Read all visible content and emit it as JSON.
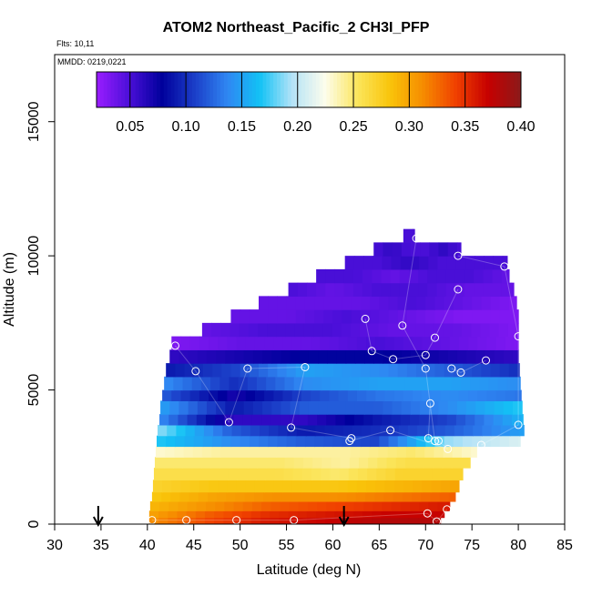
{
  "chart_data": {
    "type": "heatmap",
    "title": "ATOM2 Northeast_Pacific_2 CH3I_PFP",
    "annotations": {
      "flights": "Flts: 10,11",
      "dates": "MMDD: 0219,0221"
    },
    "xlabel": "Latitude (deg N)",
    "ylabel": "Altitude (m)",
    "xlim": [
      30,
      85
    ],
    "ylim": [
      0,
      17500
    ],
    "x_ticks": [
      30,
      35,
      40,
      45,
      50,
      55,
      60,
      65,
      70,
      75,
      80,
      85
    ],
    "y_ticks": [
      0,
      5000,
      10000,
      15000
    ],
    "colorbar": {
      "min": 0.02,
      "max": 0.4,
      "ticks": [
        "0.05",
        "0.10",
        "0.15",
        "0.20",
        "0.25",
        "0.30",
        "0.35",
        "0.40"
      ],
      "tick_values": [
        0.05,
        0.1,
        0.15,
        0.2,
        0.25,
        0.3,
        0.35,
        0.4
      ],
      "palette": [
        "#9a1dff",
        "#4b0fd9",
        "#00009c",
        "#1b3ec8",
        "#2f86f2",
        "#12c2f5",
        "#b5e3f7",
        "#fdfdec",
        "#fbe55b",
        "#f9c40a",
        "#f68c00",
        "#f04100",
        "#c60000",
        "#8b1a1a"
      ]
    },
    "flight_paths": [
      {
        "points": [
          [
            69,
            10650
          ],
          [
            67.5,
            7400
          ],
          [
            70,
            5800
          ],
          [
            71,
            3100
          ]
        ]
      },
      {
        "points": [
          [
            73.5,
            10000
          ],
          [
            78.5,
            9600
          ],
          [
            80,
            7000
          ],
          [
            80,
            3700
          ],
          [
            76,
            2950
          ]
        ]
      },
      {
        "points": [
          [
            43,
            6650
          ],
          [
            45.2,
            5700
          ],
          [
            48.8,
            3800
          ],
          [
            50.8,
            5800
          ],
          [
            57,
            5850
          ],
          [
            55.5,
            3600
          ],
          [
            62,
            3200
          ]
        ]
      },
      {
        "points": [
          [
            63.5,
            7650
          ],
          [
            64.2,
            6450
          ],
          [
            66.5,
            6150
          ],
          [
            70,
            6300
          ],
          [
            71,
            6950
          ],
          [
            73.5,
            8750
          ]
        ]
      },
      {
        "points": [
          [
            72.8,
            5800
          ],
          [
            73.8,
            5650
          ],
          [
            76.5,
            6100
          ]
        ]
      },
      {
        "points": [
          [
            40.5,
            150
          ],
          [
            44.2,
            150
          ],
          [
            49.6,
            150
          ],
          [
            55.8,
            150
          ],
          [
            70.2,
            400
          ],
          [
            71.2,
            100
          ],
          [
            72.3,
            550
          ]
        ]
      },
      {
        "points": [
          [
            70.5,
            4500
          ],
          [
            70.3,
            3200
          ],
          [
            71.4,
            3100
          ],
          [
            72.4,
            2800
          ],
          [
            66.2,
            3500
          ],
          [
            61.8,
            3100
          ]
        ]
      }
    ],
    "markers": [
      {
        "name": "start-arrow",
        "lat": 34.7
      },
      {
        "name": "end-arrow",
        "lat": 61.2
      }
    ],
    "layers": [
      {
        "alt": [
          0,
          250
        ],
        "lat": [
          40.2,
          71.6
        ],
        "values": [
          0.31,
          0.34,
          0.36,
          0.37,
          0.38,
          0.38
        ]
      },
      {
        "alt": [
          250,
          500
        ],
        "lat": [
          40.2,
          72.0
        ],
        "values": [
          0.3,
          0.33,
          0.35,
          0.36,
          0.37,
          0.37
        ]
      },
      {
        "alt": [
          500,
          850
        ],
        "lat": [
          40.3,
          72.6
        ],
        "values": [
          0.29,
          0.31,
          0.33,
          0.34,
          0.35,
          0.36
        ]
      },
      {
        "alt": [
          850,
          1200
        ],
        "lat": [
          40.5,
          73.2
        ],
        "values": [
          0.28,
          0.3,
          0.31,
          0.31,
          0.32,
          0.33
        ]
      },
      {
        "alt": [
          1200,
          1650
        ],
        "lat": [
          40.6,
          73.6
        ],
        "values": [
          0.27,
          0.28,
          0.28,
          0.28,
          0.29,
          0.3
        ]
      },
      {
        "alt": [
          1650,
          2100
        ],
        "lat": [
          40.7,
          74.0
        ],
        "values": [
          0.26,
          0.26,
          0.26,
          0.25,
          0.27,
          0.27
        ]
      },
      {
        "alt": [
          2100,
          2500
        ],
        "lat": [
          40.8,
          74.8
        ],
        "values": [
          0.25,
          0.25,
          0.25,
          0.24,
          0.26,
          0.26
        ]
      },
      {
        "alt": [
          2500,
          2900
        ],
        "lat": [
          40.9,
          75.5
        ],
        "values": [
          0.23,
          0.24,
          0.24,
          0.24,
          0.25,
          0.23
        ]
      },
      {
        "alt": [
          2900,
          3300
        ],
        "lat": [
          41.0,
          80.2
        ],
        "values": [
          0.17,
          0.14,
          0.12,
          0.11,
          0.19,
          0.21
        ]
      },
      {
        "alt": [
          3300,
          3700
        ],
        "lat": [
          41.1,
          80.6
        ],
        "values": [
          0.19,
          0.12,
          0.09,
          0.1,
          0.12,
          0.15
        ]
      },
      {
        "alt": [
          3700,
          4100
        ],
        "lat": [
          41.3,
          80.5
        ],
        "values": [
          0.14,
          0.06,
          0.06,
          0.09,
          0.11,
          0.16
        ]
      },
      {
        "alt": [
          4100,
          4600
        ],
        "lat": [
          41.4,
          80.4
        ],
        "values": [
          0.15,
          0.09,
          0.12,
          0.12,
          0.14,
          0.17
        ]
      },
      {
        "alt": [
          4600,
          5000
        ],
        "lat": [
          41.6,
          80.3
        ],
        "values": [
          0.12,
          0.07,
          0.11,
          0.13,
          0.14,
          0.13
        ]
      },
      {
        "alt": [
          5000,
          5500
        ],
        "lat": [
          41.8,
          80.2
        ],
        "values": [
          0.14,
          0.1,
          0.14,
          0.15,
          0.15,
          0.14
        ]
      },
      {
        "alt": [
          5500,
          6000
        ],
        "lat": [
          42.0,
          80.1
        ],
        "values": [
          0.09,
          0.11,
          0.15,
          0.14,
          0.12,
          0.1
        ]
      },
      {
        "alt": [
          6000,
          6500
        ],
        "lat": [
          42.4,
          80.0
        ],
        "values": [
          0.06,
          0.07,
          0.08,
          0.08,
          0.07,
          0.06
        ]
      },
      {
        "alt": [
          6500,
          7000
        ],
        "lat": [
          42.6,
          80.0
        ],
        "values": [
          0.03,
          0.04,
          0.04,
          0.05,
          0.04,
          0.03
        ]
      },
      {
        "alt": [
          7000,
          7500
        ],
        "lat": [
          45.9,
          80.0
        ],
        "values": [
          0.04,
          0.05,
          0.05,
          0.04,
          0.04,
          0.03
        ]
      },
      {
        "alt": [
          7500,
          8000
        ],
        "lat": [
          49.0,
          80.0
        ],
        "values": [
          0.04,
          0.04,
          0.05,
          0.04,
          0.03,
          0.03
        ]
      },
      {
        "alt": [
          8000,
          8500
        ],
        "lat": [
          52.0,
          79.8
        ],
        "values": [
          0.04,
          0.04,
          0.04,
          0.05,
          0.04,
          0.03
        ]
      },
      {
        "alt": [
          8500,
          9000
        ],
        "lat": [
          55.2,
          79.5
        ],
        "values": [
          0.05,
          0.04,
          0.05,
          0.05,
          0.04,
          0.04
        ]
      },
      {
        "alt": [
          9000,
          9500
        ],
        "lat": [
          58.2,
          79.0
        ],
        "values": [
          0.05,
          0.05,
          0.04,
          0.05,
          0.05,
          0.04
        ]
      },
      {
        "alt": [
          9500,
          10000
        ],
        "lat": [
          61.3,
          78.8
        ],
        "values": [
          0.05,
          0.05,
          0.06,
          0.05,
          0.05,
          0.05
        ]
      },
      {
        "alt": [
          10000,
          10500
        ],
        "lat": [
          64.4,
          73.8
        ],
        "values": [
          0.05,
          0.06,
          0.05,
          0.05,
          0.06,
          0.05
        ]
      },
      {
        "alt": [
          10500,
          11000
        ],
        "lat": [
          67.6,
          68.8
        ],
        "values": [
          0.05,
          0.05,
          0.05,
          0.05,
          0.05,
          0.05
        ]
      }
    ]
  }
}
